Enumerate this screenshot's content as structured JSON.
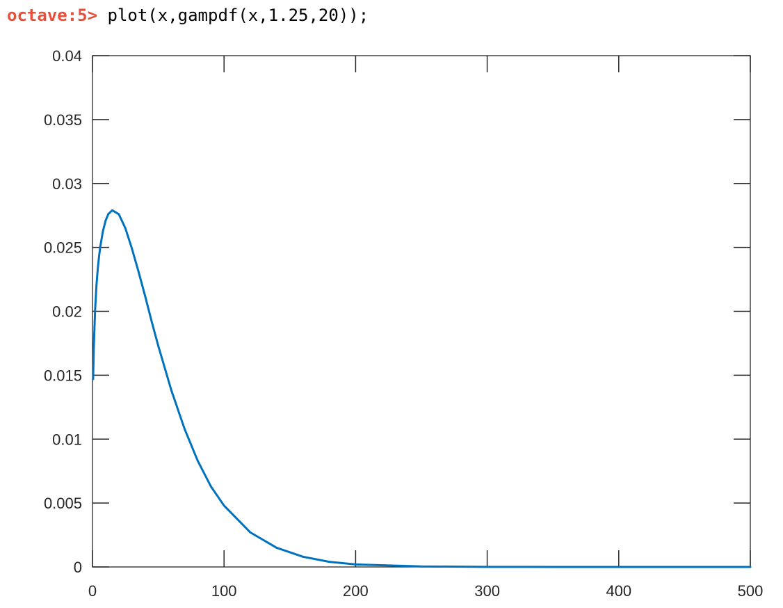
{
  "console": {
    "prompt": "octave:5>",
    "command": "plot(x,gampdf(x,1.25,20));"
  },
  "chart_data": {
    "type": "line",
    "title": "",
    "xlabel": "",
    "ylabel": "",
    "xlim": [
      0,
      500
    ],
    "ylim": [
      0,
      0.04
    ],
    "x_ticks": [
      "0",
      "100",
      "200",
      "300",
      "400",
      "500"
    ],
    "y_ticks": [
      "0",
      "0.005",
      "0.01",
      "0.015",
      "0.02",
      "0.025",
      "0.03",
      "0.035",
      "0.04"
    ],
    "grid": false,
    "box": true,
    "line_color": "#0072bd",
    "series": [
      {
        "x": [
          0.5,
          1,
          2,
          3,
          4,
          5,
          6,
          8,
          10,
          12,
          15,
          20,
          25,
          30,
          35,
          40,
          45,
          50,
          60,
          70,
          80,
          90,
          100,
          120,
          140,
          160,
          180,
          200,
          250,
          300,
          350,
          400,
          450,
          500
        ],
        "y": [
          0.0147,
          0.0172,
          0.0201,
          0.022,
          0.0233,
          0.0243,
          0.0251,
          0.0263,
          0.0271,
          0.0276,
          0.0279,
          0.0276,
          0.0265,
          0.0249,
          0.0231,
          0.0212,
          0.0192,
          0.0173,
          0.0138,
          0.0108,
          0.0083,
          0.0063,
          0.0048,
          0.0027,
          0.0015,
          0.0008,
          0.0004,
          0.0002,
          4e-05,
          1e-05,
          2e-06,
          4e-07,
          8e-08,
          2e-08
        ]
      }
    ]
  }
}
